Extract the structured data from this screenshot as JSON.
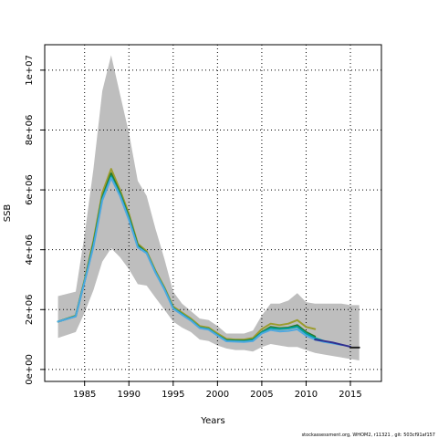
{
  "chart_data": {
    "type": "line",
    "xlabel": "Years",
    "ylabel": "SSB",
    "xlim": [
      1980.5,
      2018.5
    ],
    "ylim": [
      -400000,
      10850000
    ],
    "x_ticks": [
      1985,
      1990,
      1995,
      2000,
      2005,
      2010,
      2015
    ],
    "x_tick_labels": [
      "1985",
      "1990",
      "1995",
      "2000",
      "2005",
      "2010",
      "2015"
    ],
    "y_ticks": [
      0,
      2000000,
      4000000,
      6000000,
      8000000,
      10000000
    ],
    "y_tick_labels": [
      "0e+00",
      "2e+06",
      "4e+06",
      "6e+06",
      "8e+06",
      "1e+07"
    ],
    "grid": true,
    "grid_style": "dotted",
    "confidence_band": {
      "color": "#bebebe",
      "x": [
        1982,
        1984,
        1985,
        1986,
        1987,
        1988,
        1989,
        1990,
        1991,
        1992,
        1993,
        1994,
        1995,
        1996,
        1997,
        1998,
        1999,
        2000,
        2001,
        2002,
        2003,
        2004,
        2005,
        2006,
        2007,
        2008,
        2009,
        2010,
        2011,
        2012,
        2013,
        2014,
        2015,
        2016
      ],
      "upper": [
        2450000,
        2600000,
        4500000,
        6700000,
        9300000,
        10500000,
        9200000,
        7900000,
        6300000,
        5800000,
        4700000,
        3700000,
        2600000,
        2200000,
        1950000,
        1700000,
        1650000,
        1450000,
        1200000,
        1200000,
        1200000,
        1300000,
        1800000,
        2200000,
        2200000,
        2300000,
        2550000,
        2250000,
        2200000,
        2200000,
        2200000,
        2200000,
        2150000,
        2150000
      ],
      "lower": [
        1050000,
        1250000,
        1900000,
        2650000,
        3600000,
        4050000,
        3750000,
        3350000,
        2850000,
        2800000,
        2400000,
        2000000,
        1600000,
        1400000,
        1250000,
        1000000,
        950000,
        800000,
        700000,
        650000,
        650000,
        600000,
        750000,
        850000,
        800000,
        750000,
        750000,
        650000,
        550000,
        500000,
        450000,
        400000,
        350000,
        300000
      ]
    },
    "series": [
      {
        "color": "#9c9c2e",
        "x": [
          1982,
          1984,
          1985,
          1986,
          1987,
          1988,
          1989,
          1990,
          1991,
          1992,
          1993,
          1994,
          1995,
          1996,
          1997,
          1998,
          1999,
          2000,
          2001,
          2002,
          2003,
          2004,
          2005,
          2006,
          2007,
          2008,
          2009,
          2010,
          2011
        ],
        "values": [
          1600000,
          1800000,
          3000000,
          4300000,
          5900000,
          6700000,
          6000000,
          5200000,
          4200000,
          3950000,
          3300000,
          2750000,
          2100000,
          1900000,
          1700000,
          1450000,
          1400000,
          1200000,
          1020000,
          1000000,
          1000000,
          1050000,
          1350000,
          1530000,
          1480000,
          1530000,
          1650000,
          1420000,
          1350000
        ]
      },
      {
        "color": "#2a7a2a",
        "x": [
          1982,
          1984,
          1985,
          1986,
          1987,
          1988,
          1989,
          1990,
          1991,
          1992,
          1993,
          1994,
          1995,
          1996,
          1997,
          1998,
          1999,
          2000,
          2001,
          2002,
          2003,
          2004,
          2005,
          2006,
          2007,
          2008,
          2009,
          2010,
          2011
        ],
        "values": [
          1600000,
          1780000,
          2950000,
          4200000,
          5750000,
          6550000,
          5900000,
          5100000,
          4150000,
          3900000,
          3250000,
          2700000,
          2050000,
          1850000,
          1650000,
          1400000,
          1350000,
          1150000,
          980000,
          970000,
          960000,
          1000000,
          1250000,
          1420000,
          1380000,
          1400000,
          1480000,
          1250000,
          1100000
        ]
      },
      {
        "color": "#00a0a0",
        "x": [
          1982,
          1984,
          1985,
          1986,
          1987,
          1988,
          1989,
          1990,
          1991,
          1992,
          1993,
          1994,
          1995,
          1996,
          1997,
          1998,
          1999,
          2000,
          2001,
          2002,
          2003,
          2004,
          2005,
          2006,
          2007,
          2008,
          2009,
          2010,
          2011,
          2012
        ],
        "values": [
          1600000,
          1780000,
          2950000,
          4150000,
          5700000,
          6450000,
          5850000,
          5050000,
          4100000,
          3900000,
          3250000,
          2700000,
          2050000,
          1850000,
          1650000,
          1400000,
          1350000,
          1150000,
          960000,
          950000,
          940000,
          980000,
          1230000,
          1380000,
          1350000,
          1370000,
          1430000,
          1200000,
          1050000,
          950000
        ]
      },
      {
        "color": "#4fa8e0",
        "x": [
          1982,
          1984,
          1985,
          1986,
          1987,
          1988,
          1989,
          1990,
          1991,
          1992,
          1993,
          1994,
          1995,
          1996,
          1997,
          1998,
          1999,
          2000,
          2001,
          2002,
          2003,
          2004,
          2005,
          2006,
          2007,
          2008,
          2009,
          2010,
          2011,
          2012,
          2013,
          2014
        ],
        "values": [
          1600000,
          1770000,
          2930000,
          4100000,
          5650000,
          6400000,
          5800000,
          5000000,
          4080000,
          3880000,
          3230000,
          2680000,
          2030000,
          1830000,
          1630000,
          1380000,
          1330000,
          1130000,
          940000,
          930000,
          920000,
          950000,
          1200000,
          1320000,
          1270000,
          1290000,
          1340000,
          1130000,
          1000000,
          920000,
          870000,
          820000
        ]
      },
      {
        "color": "#303090",
        "x": [
          2011,
          2012,
          2013,
          2014,
          2015
        ],
        "values": [
          1000000,
          950000,
          900000,
          830000,
          760000
        ]
      },
      {
        "color": "#202020",
        "x": [
          2015,
          2016
        ],
        "values": [
          730000,
          730000
        ]
      }
    ]
  },
  "footer": "stockassessment.org, WHOM2, r11321 , git: 503cf91af157"
}
